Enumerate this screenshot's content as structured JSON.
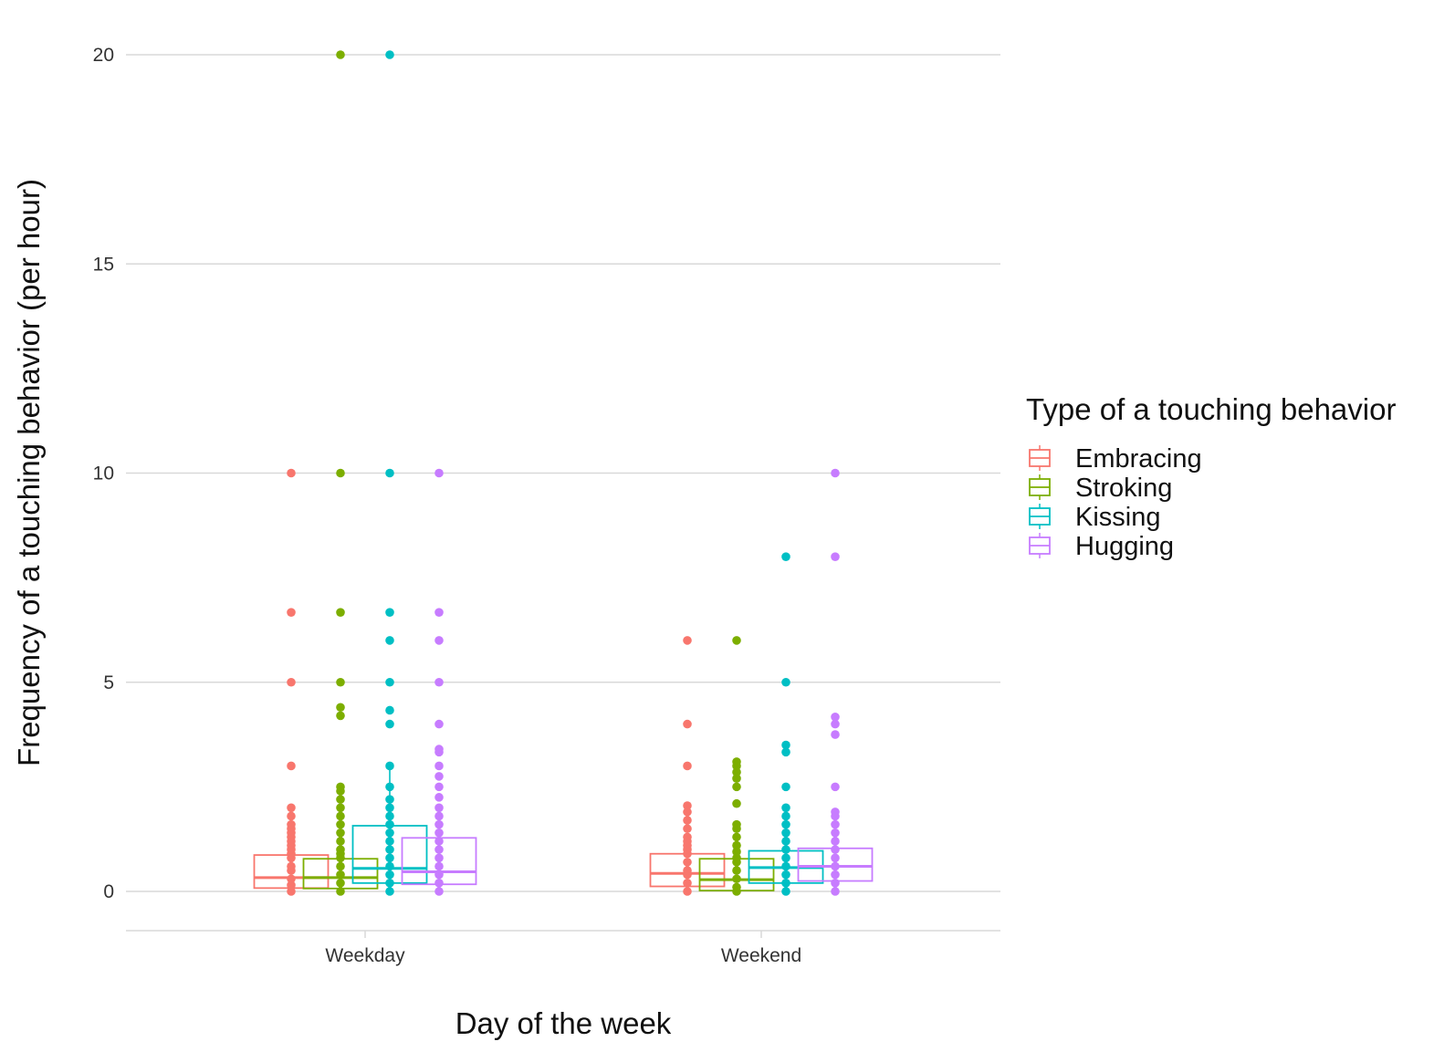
{
  "chart_data": {
    "type": "boxplot",
    "title": "",
    "xlabel": "Day of the week",
    "ylabel": "Frequency of a touching behavior (per hour)",
    "ylim": [
      -0.95,
      20.5
    ],
    "yticks": [
      0,
      5,
      10,
      15,
      20
    ],
    "ytick_labels": [
      "0",
      "5",
      "10",
      "15",
      "20"
    ],
    "categories": [
      "Weekday",
      "Weekend"
    ],
    "legend": {
      "title": "Type of a touching behavior",
      "position": "right"
    },
    "series": [
      {
        "name": "Embracing",
        "color": "#F8766D",
        "boxes": [
          {
            "q1": 0.08,
            "median": 0.33,
            "q3": 0.87,
            "whisker_low": 0,
            "whisker_high": 0.87
          },
          {
            "q1": 0.12,
            "median": 0.43,
            "q3": 0.9,
            "whisker_low": 0,
            "whisker_high": 0.9
          }
        ],
        "points": [
          [
            0,
            0.15,
            0.3,
            0.5,
            0.6,
            0.8,
            0.9,
            1.0,
            1.1,
            1.2,
            1.3,
            1.4,
            1.5,
            1.6,
            1.8,
            2.0,
            3.0,
            5.0,
            6.67,
            10.0
          ],
          [
            0,
            0.2,
            0.4,
            0.5,
            0.7,
            0.9,
            1.0,
            1.1,
            1.2,
            1.3,
            1.5,
            1.7,
            1.9,
            2.05,
            3.0,
            4.0,
            6.0
          ]
        ]
      },
      {
        "name": "Stroking",
        "color": "#7CAE00",
        "boxes": [
          {
            "q1": 0.07,
            "median": 0.33,
            "q3": 0.78,
            "whisker_low": 0,
            "whisker_high": 0.78
          },
          {
            "q1": 0.02,
            "median": 0.28,
            "q3": 0.78,
            "whisker_low": 0,
            "whisker_high": 0.78
          }
        ],
        "points": [
          [
            0,
            0.2,
            0.4,
            0.6,
            0.8,
            0.9,
            1.0,
            1.2,
            1.4,
            1.6,
            1.8,
            2.0,
            2.2,
            2.4,
            2.5,
            4.2,
            4.4,
            5.0,
            6.67,
            10.0,
            20.0
          ],
          [
            0,
            0.1,
            0.3,
            0.5,
            0.7,
            0.8,
            0.95,
            1.1,
            1.3,
            1.5,
            1.6,
            2.1,
            2.5,
            2.7,
            2.85,
            3.0,
            3.1,
            6.0
          ]
        ]
      },
      {
        "name": "Kissing",
        "color": "#00BFC4",
        "boxes": [
          {
            "q1": 0.2,
            "median": 0.55,
            "q3": 1.57,
            "whisker_low": 0,
            "whisker_high": 3.0
          },
          {
            "q1": 0.2,
            "median": 0.57,
            "q3": 0.97,
            "whisker_low": 0,
            "whisker_high": 1.3
          }
        ],
        "points": [
          [
            0,
            0.2,
            0.4,
            0.6,
            0.8,
            1.0,
            1.2,
            1.4,
            1.6,
            1.8,
            2.0,
            2.2,
            2.5,
            3.0,
            4.0,
            4.33,
            5.0,
            6.0,
            6.67,
            10.0,
            20.0
          ],
          [
            0,
            0.2,
            0.4,
            0.6,
            0.8,
            1.0,
            1.2,
            1.4,
            1.6,
            1.8,
            2.0,
            2.5,
            3.33,
            3.5,
            5.0,
            8.0
          ]
        ]
      },
      {
        "name": "Hugging",
        "color": "#C77CFF",
        "boxes": [
          {
            "q1": 0.17,
            "median": 0.47,
            "q3": 1.28,
            "whisker_low": 0,
            "whisker_high": 1.28
          },
          {
            "q1": 0.25,
            "median": 0.6,
            "q3": 1.03,
            "whisker_low": 0,
            "whisker_high": 1.03
          }
        ],
        "points": [
          [
            0,
            0.2,
            0.4,
            0.6,
            0.8,
            1.0,
            1.2,
            1.4,
            1.6,
            1.8,
            2.0,
            2.25,
            2.5,
            2.75,
            3.0,
            3.33,
            3.4,
            4.0,
            5.0,
            6.0,
            6.67,
            10.0
          ],
          [
            0,
            0.2,
            0.4,
            0.6,
            0.8,
            1.0,
            1.2,
            1.4,
            1.6,
            1.8,
            1.9,
            2.5,
            3.75,
            4.0,
            4.17,
            8.0,
            10.0
          ]
        ]
      }
    ]
  }
}
